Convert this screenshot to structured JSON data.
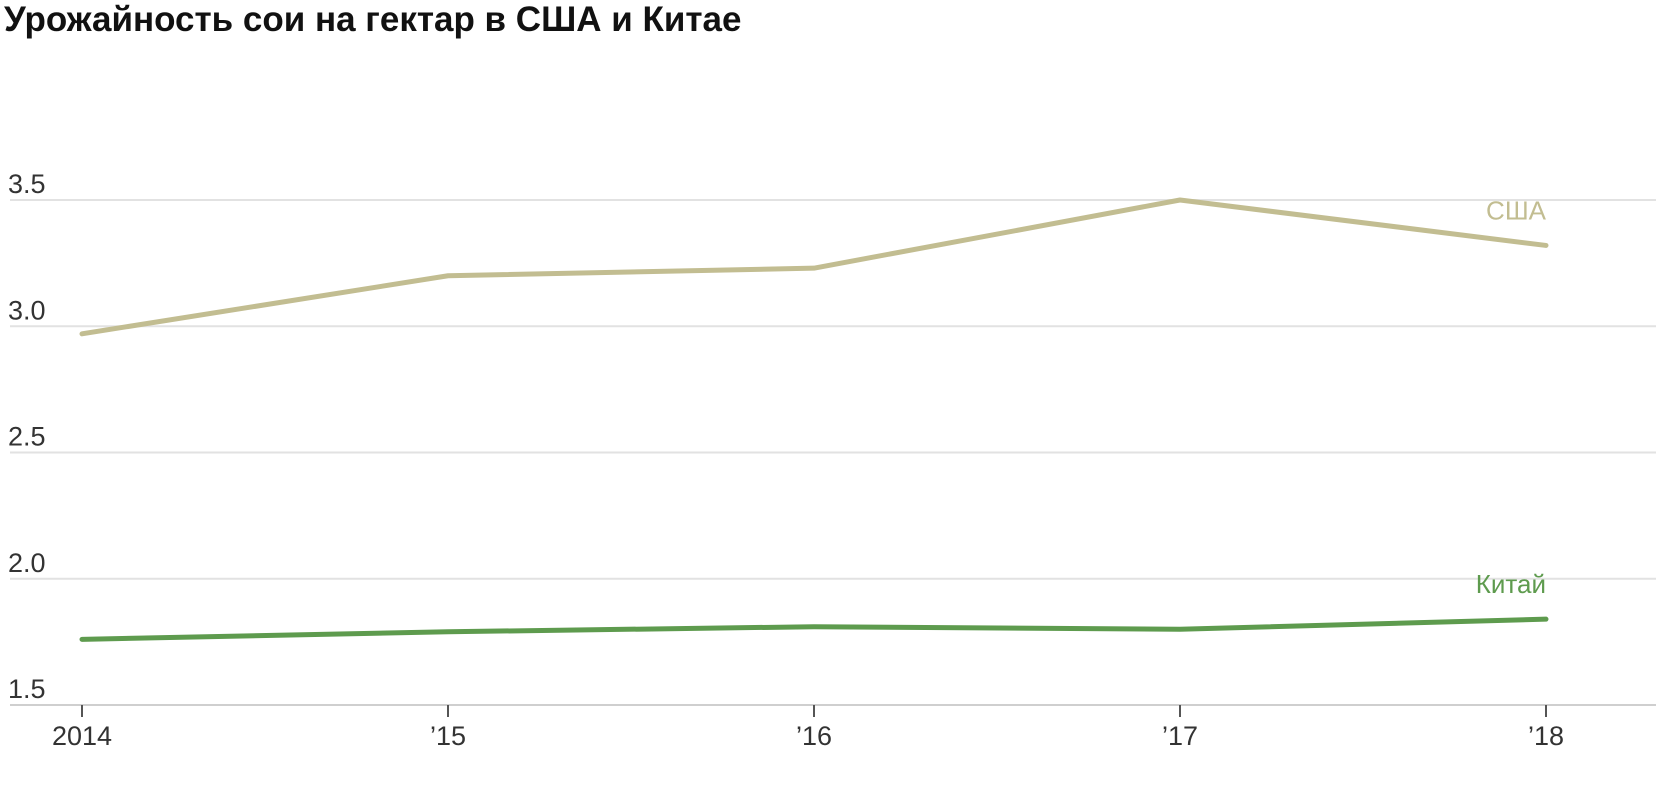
{
  "chart_data": {
    "type": "line",
    "title": "Урожайность сои на гектар в США и Китае",
    "xlabel": "",
    "ylabel": "",
    "x": [
      2014,
      2015,
      2016,
      2017,
      2018
    ],
    "x_tick_labels": [
      "2014",
      "’15",
      "’16",
      "’17",
      "’18"
    ],
    "y_ticks": [
      1.5,
      2.0,
      2.5,
      3.0,
      3.5
    ],
    "y_tick_labels": [
      "1.5",
      "2.0",
      "2.5",
      "3.0",
      "3.5"
    ],
    "ylim": [
      1.5,
      3.5
    ],
    "grid": true,
    "legend": "inline labels at right end of lines",
    "series": [
      {
        "name": "США",
        "color": "#c2bd91",
        "values": [
          2.97,
          3.2,
          3.23,
          3.5,
          3.32
        ]
      },
      {
        "name": "Китай",
        "color": "#5e9b4e",
        "values": [
          1.76,
          1.79,
          1.81,
          1.8,
          1.84
        ]
      }
    ]
  }
}
